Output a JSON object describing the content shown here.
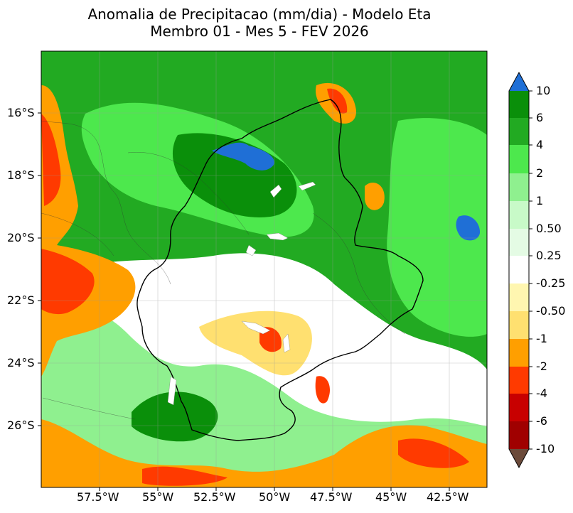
{
  "title": {
    "line1": "Anomalia de Precipitacao (mm/dia) - Modelo Eta",
    "line2": "Membro 01 - Mes 5 - FEV 2026"
  },
  "axes": {
    "lat_labels": [
      "16°S",
      "18°S",
      "20°S",
      "22°S",
      "24°S",
      "26°S"
    ],
    "lon_labels": [
      "57.5°W",
      "55°W",
      "52.5°W",
      "50°W",
      "47.5°W",
      "45°W",
      "42.5°W"
    ]
  },
  "colorbar": {
    "tick_labels": [
      "10",
      "6",
      "4",
      "2",
      "1",
      "0.50",
      "0.25",
      "-0.25",
      "-0.50",
      "-1",
      "-2",
      "-4",
      "-6",
      "-10"
    ],
    "colors": {
      "above_10": "#1f6fd6",
      "6_to_10": "#0a8f0a",
      "4_to_6": "#22aa22",
      "2_to_4": "#4de84d",
      "1_to_2": "#8ff08f",
      "0.5_to_1": "#c8fac8",
      "0.25_to_0.5": "#e4fbe4",
      "neutral": "#ffffff",
      "-0.5_to_-0.25": "#fff6b0",
      "-1_to_-0.5": "#ffe070",
      "-2_to_-1": "#ff9f00",
      "-4_to_-2": "#ff3a00",
      "-6_to_-4": "#c80000",
      "-10_to_-6": "#a00000",
      "below_-10": "#6b4a3a"
    }
  }
}
